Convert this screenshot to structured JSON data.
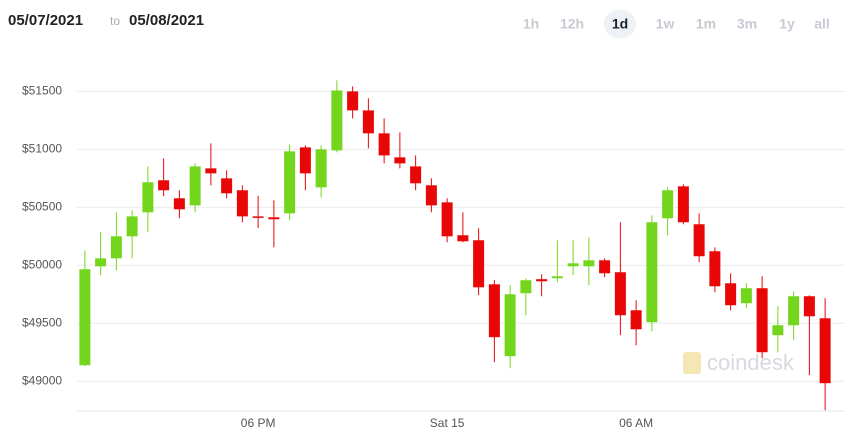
{
  "header": {
    "from": "05/07/2021",
    "separator": "to",
    "to": "05/08/2021",
    "timeframes": [
      "1h",
      "12h",
      "1d",
      "1w",
      "1m",
      "3m",
      "1y",
      "all"
    ],
    "selected": "1d"
  },
  "chart_data": {
    "type": "candlestick",
    "watermark": "coindesk",
    "up_color": "#74d61c",
    "down_color": "#e80606",
    "grid": true,
    "categories": [
      null,
      null,
      null,
      null,
      null,
      null,
      null,
      null,
      null,
      null,
      null,
      "06 PM",
      null,
      null,
      null,
      null,
      null,
      null,
      null,
      null,
      null,
      null,
      null,
      "Sat 15",
      null,
      null,
      null,
      null,
      null,
      null,
      null,
      null,
      null,
      null,
      null,
      "06 AM",
      null,
      null,
      null,
      null,
      null,
      null,
      null,
      null,
      null,
      null,
      null,
      null
    ],
    "open": [
      49138,
      49991,
      50060,
      50250,
      50457,
      50733,
      50578,
      50517,
      50836,
      50750,
      50647,
      50422,
      50414,
      50448,
      51017,
      50672,
      50991,
      51500,
      51336,
      51138,
      50931,
      50853,
      50690,
      50543,
      50259,
      50216,
      49836,
      49216,
      49759,
      49880,
      49888,
      49991,
      49991,
      50043,
      49940,
      49612,
      49509,
      50405,
      50681,
      50354,
      50121,
      49845,
      49673,
      49802,
      49397,
      49483,
      49733,
      49543
    ],
    "high": [
      50129,
      50285,
      50457,
      50474,
      50853,
      50922,
      50647,
      50880,
      51052,
      50819,
      50690,
      50600,
      50560,
      51043,
      51035,
      51035,
      51595,
      51543,
      51440,
      51267,
      51146,
      50948,
      50750,
      50578,
      50457,
      50319,
      49871,
      49828,
      49888,
      49922,
      50215,
      50216,
      50241,
      50060,
      50371,
      49698,
      50431,
      50673,
      50698,
      50448,
      50155,
      49931,
      49845,
      49905,
      49647,
      49776,
      49741,
      49716
    ],
    "low": [
      49130,
      49914,
      49957,
      50060,
      50285,
      50595,
      50405,
      50457,
      50690,
      50578,
      50370,
      50320,
      50155,
      50388,
      50647,
      50586,
      50974,
      51267,
      51009,
      50879,
      50836,
      50647,
      50457,
      50198,
      50198,
      49742,
      49164,
      49112,
      49569,
      49733,
      49854,
      49914,
      49828,
      49897,
      49397,
      49310,
      49431,
      50259,
      50354,
      50026,
      49767,
      49612,
      49629,
      49198,
      49250,
      49354,
      49052,
      48750
    ],
    "close": [
      49966,
      50060,
      50250,
      50422,
      50716,
      50647,
      50483,
      50853,
      50793,
      50621,
      50422,
      50414,
      50397,
      50983,
      50793,
      51000,
      51508,
      51336,
      51138,
      50948,
      50879,
      50707,
      50517,
      50250,
      50207,
      49810,
      49380,
      49750,
      49871,
      49862,
      49905,
      50017,
      50043,
      49931,
      49569,
      49448,
      50371,
      50647,
      50371,
      50078,
      49819,
      49655,
      49802,
      49250,
      49483,
      49733,
      49560,
      48983
    ],
    "ylim": [
      48700,
      51650
    ],
    "yticks": [
      {
        "value": 49000,
        "label": "$49000"
      },
      {
        "value": 49500,
        "label": "$49500"
      },
      {
        "value": 50000,
        "label": "$50000"
      },
      {
        "value": 50500,
        "label": "$50500"
      },
      {
        "value": 51000,
        "label": "$51000"
      },
      {
        "value": 51500,
        "label": "$51500"
      }
    ]
  }
}
